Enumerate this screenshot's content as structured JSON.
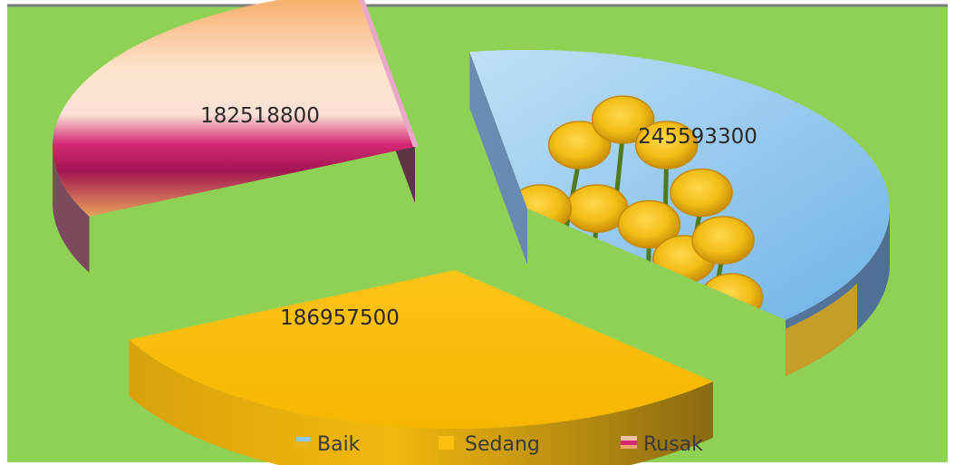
{
  "chart_data": {
    "type": "pie",
    "style": "3d-exploded",
    "categories": [
      "Baik",
      "Sedang",
      "Rusak"
    ],
    "values": [
      245593300,
      186957500,
      182518800
    ],
    "data_labels": [
      "245593300",
      "186957500",
      "182518800"
    ],
    "legend": {
      "position": "bottom",
      "entries": [
        "Baik",
        "Sedang",
        "Rusak"
      ]
    },
    "colors": {
      "background": "#8fd155",
      "baik_sky": "#8ec7ef",
      "baik_tulip": "#f2c21a",
      "baik_side": "#5b7fa6",
      "sedang_top": "#fbbf10",
      "sedang_side": "#b88a0a",
      "rusak_top": "#f6c5a3",
      "rusak_band": "#c8195e",
      "rusak_side": "#6e3d52"
    }
  }
}
